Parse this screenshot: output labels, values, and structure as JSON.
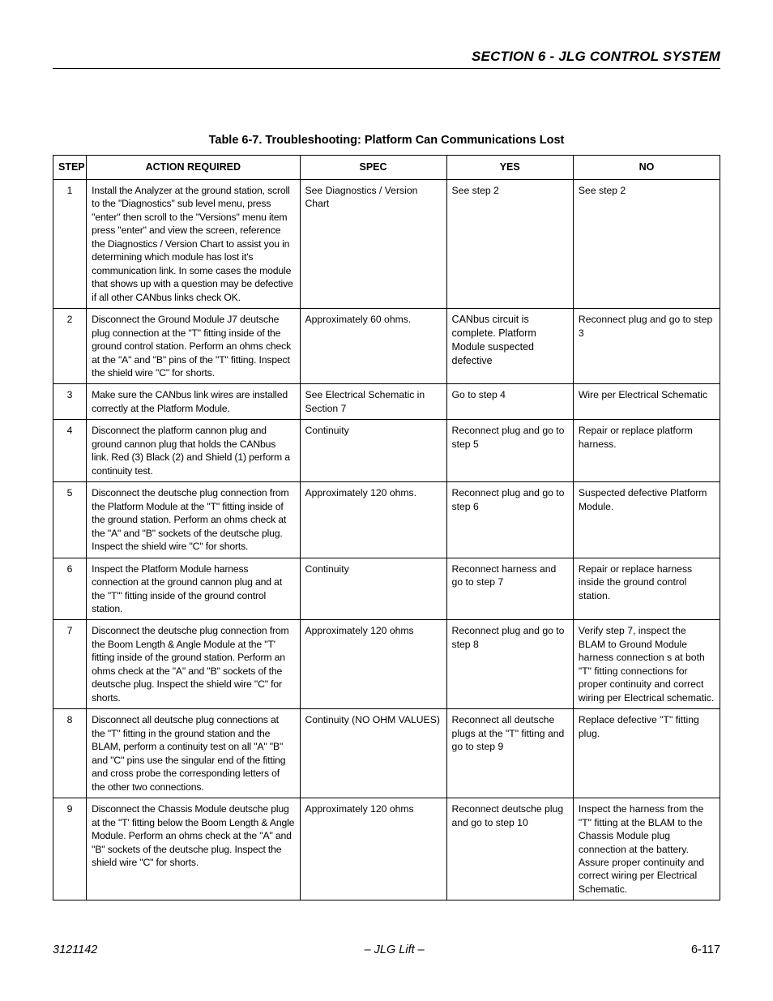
{
  "header": {
    "section_title": "SECTION 6 - JLG CONTROL SYSTEM"
  },
  "table": {
    "caption": "Table 6-7. Troubleshooting: Platform Can Communications Lost",
    "columns": [
      "STEP",
      "ACTION REQUIRED",
      "SPEC",
      "YES",
      "NO"
    ],
    "rows": [
      {
        "step": "1",
        "action": "Install the Analyzer at the ground station, scroll to the \"Diagnostics\" sub level menu, press \"enter\" then scroll to the \"Versions\" menu item press \"enter\" and view the screen, reference the Diagnostics / Version Chart to assist you in determining which module has lost it's communication link. In some cases the module that shows up with a question may be defective if all other CANbus links check OK.",
        "spec": "See Diagnostics / Version Chart",
        "yes": "See step 2",
        "no": "See step 2"
      },
      {
        "step": "2",
        "action": "Disconnect the Ground Module J7 deutsche plug connection at the \"T\" fitting inside of the ground control station. Perform an ohms check at the \"A\" and \"B\" pins of the \"T\" fitting. Inspect the shield wire \"C\" for shorts.",
        "spec": "Approximately 60 ohms.",
        "yes": "CANbus circuit is complete. Platform Module suspected defective",
        "no": "Reconnect plug and go to step 3"
      },
      {
        "step": "3",
        "action": "Make sure the CANbus link wires are installed correctly at the Platform Module.",
        "spec": "See Electrical Schematic in Section 7",
        "yes": "Go to step 4",
        "no": "Wire per Electrical Schematic"
      },
      {
        "step": "4",
        "action": "Disconnect the platform cannon plug and ground cannon plug that holds the CANbus link. Red (3) Black (2) and Shield (1) perform a continuity test.",
        "spec": "Continuity",
        "yes": "Reconnect plug and go to step 5",
        "no": "Repair or replace platform harness."
      },
      {
        "step": "5",
        "action": "Disconnect the deutsche plug connection from the Platform Module at the \"T\" fitting inside of the ground station. Perform an ohms check at the \"A\" and \"B\" sockets of the deutsche plug. Inspect the shield wire \"C\" for shorts.",
        "spec": "Approximately 120 ohms.",
        "yes": "Reconnect plug and go to step 6",
        "no": "Suspected defective Platform Module."
      },
      {
        "step": "6",
        "action": "Inspect the Platform Module harness connection at the ground cannon plug and at the \"T'\" fitting inside of the ground control station.",
        "spec": "Continuity",
        "yes": "Reconnect harness and go to step 7",
        "no": "Repair or replace harness inside the ground control station."
      },
      {
        "step": "7",
        "action": "Disconnect the deutsche plug connection from the Boom Length & Angle Module at the \"T' fitting inside of the ground station. Perform an ohms check at the \"A\" and \"B\" sockets of the deutsche plug. Inspect the shield wire \"C\" for shorts.",
        "spec": "Approximately 120 ohms",
        "yes": "Reconnect plug and go to step 8",
        "no": "Verify step 7, inspect the BLAM to Ground Module harness connection s at both \"T\" fitting connections for proper continuity and correct wiring per Electrical schematic."
      },
      {
        "step": "8",
        "action": "Disconnect all deutsche plug connections at the \"T\" fitting in the ground station and the BLAM, perform a continuity test on all \"A\" \"B\" and \"C\" pins use the singular end of the fitting and cross probe the corresponding letters of the other two connections.",
        "spec": "Continuity (NO OHM VALUES)",
        "yes": "Reconnect all deutsche plugs at the \"T\" fitting and go to step 9",
        "no": "Replace defective \"T\" fitting plug."
      },
      {
        "step": "9",
        "action": "Disconnect the Chassis Module deutsche plug at the \"T' fitting below the Boom Length & Angle Module. Perform an ohms check at the \"A\" and \"B\" sockets of the deutsche plug. Inspect the shield wire \"C\" for shorts.",
        "spec": "Approximately 120 ohms",
        "yes": "Reconnect deutsche plug and go to step 10",
        "no": "Inspect the harness from the \"T\" fitting at the BLAM to the Chassis Module plug connection at the battery. Assure proper continuity and correct wiring per Electrical Schematic."
      }
    ]
  },
  "footer": {
    "doc_number": "3121142",
    "center": "– JLG Lift –",
    "page": "6-117"
  }
}
